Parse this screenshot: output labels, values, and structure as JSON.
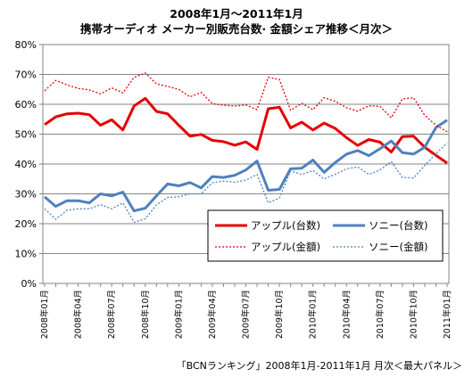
{
  "chart_data": {
    "type": "line",
    "title": "2008年1月～2011年1月",
    "subtitle": "携帯オーディオ メーカー別販売台数· 金額シェア推移＜月次＞",
    "source": "「BCNランキング」2008年1月-2011年1月 月次＜最大パネル＞",
    "ylim": [
      0,
      80
    ],
    "y_ticks": [
      "0%",
      "10%",
      "20%",
      "30%",
      "40%",
      "50%",
      "60%",
      "70%",
      "80%"
    ],
    "x_tick_labels": [
      "2008年01月",
      "2008年04月",
      "2008年07月",
      "2008年10月",
      "2009年01月",
      "2009年04月",
      "2009年07月",
      "2009年10月",
      "2010年01月",
      "2010年04月",
      "2010年07月",
      "2010年10月",
      "2011年01月"
    ],
    "x": [
      "2008年01月",
      "2008年02月",
      "2008年03月",
      "2008年04月",
      "2008年05月",
      "2008年06月",
      "2008年07月",
      "2008年08月",
      "2008年09月",
      "2008年10月",
      "2008年11月",
      "2008年12月",
      "2009年01月",
      "2009年02月",
      "2009年03月",
      "2009年04月",
      "2009年05月",
      "2009年06月",
      "2009年07月",
      "2009年08月",
      "2009年09月",
      "2009年10月",
      "2009年11月",
      "2009年12月",
      "2010年01月",
      "2010年02月",
      "2010年03月",
      "2010年04月",
      "2010年05月",
      "2010年06月",
      "2010年07月",
      "2010年08月",
      "2010年09月",
      "2010年10月",
      "2010年11月",
      "2010年12月",
      "2011年01月"
    ],
    "grid": true,
    "legend_placement": "center-right",
    "series": [
      {
        "name": "アップル(台数)",
        "color": "#e60000",
        "style": "solid",
        "values": [
          53.2,
          55.8,
          56.8,
          57.0,
          56.5,
          53.0,
          54.8,
          51.4,
          59.4,
          62.0,
          57.6,
          56.8,
          53.0,
          49.3,
          49.9,
          47.9,
          47.5,
          46.3,
          47.4,
          44.9,
          58.5,
          59.0,
          52.1,
          54.0,
          51.4,
          53.7,
          51.9,
          48.8,
          46.2,
          48.2,
          47.3,
          44.0,
          49.2,
          49.3,
          45.6,
          42.9,
          40.3
        ]
      },
      {
        "name": "ソニー(台数)",
        "color": "#4f81bd",
        "style": "solid",
        "values": [
          29.0,
          25.8,
          27.7,
          27.7,
          27.0,
          30.0,
          29.3,
          30.6,
          24.3,
          25.2,
          29.3,
          33.3,
          32.7,
          33.8,
          32.0,
          35.8,
          35.5,
          36.2,
          38.0,
          41.0,
          31.2,
          31.5,
          38.4,
          38.6,
          41.3,
          37.2,
          40.5,
          43.3,
          44.5,
          42.8,
          45.1,
          47.7,
          43.8,
          43.3,
          45.6,
          52.2,
          54.7
        ]
      },
      {
        "name": "アップル(金額)",
        "color": "#e60000",
        "style": "dotted",
        "values": [
          64.5,
          68.0,
          66.5,
          65.3,
          64.8,
          63.5,
          65.5,
          63.8,
          69.0,
          70.5,
          66.8,
          66.0,
          65.0,
          62.5,
          64.0,
          60.2,
          59.7,
          59.4,
          59.8,
          58.2,
          69.0,
          68.3,
          58.0,
          60.3,
          58.2,
          62.2,
          61.0,
          58.8,
          57.7,
          59.5,
          59.3,
          55.5,
          61.8,
          62.2,
          56.3,
          53.0,
          50.8
        ]
      },
      {
        "name": "ソニー(金額)",
        "color": "#4f81bd",
        "style": "dotted",
        "values": [
          25.0,
          21.5,
          24.5,
          25.0,
          25.0,
          26.4,
          25.0,
          27.0,
          20.5,
          21.6,
          26.3,
          28.8,
          29.0,
          30.0,
          30.0,
          33.7,
          34.3,
          33.9,
          34.6,
          36.5,
          27.0,
          28.6,
          37.7,
          36.5,
          37.8,
          35.0,
          36.5,
          38.4,
          39.0,
          36.5,
          38.0,
          40.8,
          35.5,
          35.3,
          39.5,
          43.5,
          47.0
        ]
      }
    ]
  }
}
